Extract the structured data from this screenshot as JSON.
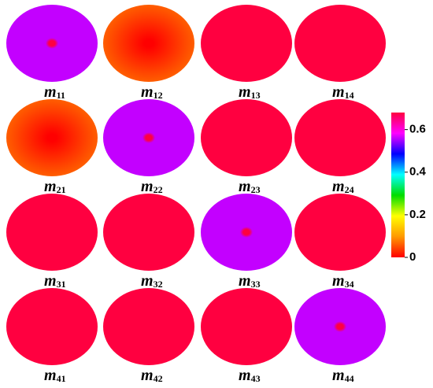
{
  "chart_data": {
    "type": "image-grid",
    "panels": [
      {
        "label": "m",
        "subscript": "11",
        "center": 0.68,
        "edge": 0.56,
        "profile": "dot"
      },
      {
        "label": "m",
        "subscript": "12",
        "center": 0.0,
        "edge": 0.06,
        "profile": "smooth"
      },
      {
        "label": "m",
        "subscript": "13",
        "center": 0.68,
        "edge": 0.68,
        "profile": "smooth"
      },
      {
        "label": "m",
        "subscript": "14",
        "center": 0.68,
        "edge": 0.68,
        "profile": "smooth"
      },
      {
        "label": "m",
        "subscript": "21",
        "center": 0.0,
        "edge": 0.06,
        "profile": "smooth"
      },
      {
        "label": "m",
        "subscript": "22",
        "center": 0.68,
        "edge": 0.56,
        "profile": "dot"
      },
      {
        "label": "m",
        "subscript": "23",
        "center": 0.68,
        "edge": 0.68,
        "profile": "smooth"
      },
      {
        "label": "m",
        "subscript": "24",
        "center": 0.68,
        "edge": 0.68,
        "profile": "smooth"
      },
      {
        "label": "m",
        "subscript": "31",
        "center": 0.68,
        "edge": 0.68,
        "profile": "smooth"
      },
      {
        "label": "m",
        "subscript": "32",
        "center": 0.68,
        "edge": 0.68,
        "profile": "smooth"
      },
      {
        "label": "m",
        "subscript": "33",
        "center": 0.68,
        "edge": 0.56,
        "profile": "dot"
      },
      {
        "label": "m",
        "subscript": "34",
        "center": 0.68,
        "edge": 0.68,
        "profile": "smooth"
      },
      {
        "label": "m",
        "subscript": "41",
        "center": 0.68,
        "edge": 0.68,
        "profile": "smooth"
      },
      {
        "label": "m",
        "subscript": "42",
        "center": 0.68,
        "edge": 0.68,
        "profile": "smooth"
      },
      {
        "label": "m",
        "subscript": "43",
        "center": 0.68,
        "edge": 0.68,
        "profile": "smooth"
      },
      {
        "label": "m",
        "subscript": "44",
        "center": 0.68,
        "edge": 0.56,
        "profile": "dot"
      }
    ],
    "columns": 4,
    "clim": [
      0,
      0.68
    ],
    "cticks": [
      0,
      0.2,
      0.4,
      0.6
    ],
    "colormap": [
      "#ff0000",
      "#ff9900",
      "#ffff00",
      "#00dd00",
      "#00ffff",
      "#0000ff",
      "#ff00ff",
      "#ff0040"
    ]
  }
}
